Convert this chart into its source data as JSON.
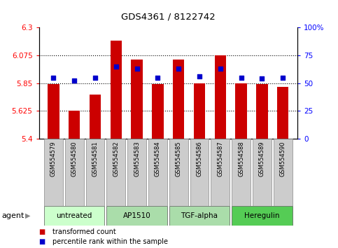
{
  "title": "GDS4361 / 8122742",
  "samples": [
    "GSM554579",
    "GSM554580",
    "GSM554581",
    "GSM554582",
    "GSM554583",
    "GSM554584",
    "GSM554585",
    "GSM554586",
    "GSM554587",
    "GSM554588",
    "GSM554589",
    "GSM554590"
  ],
  "bar_values": [
    5.84,
    5.625,
    5.76,
    6.19,
    6.04,
    5.84,
    6.04,
    5.85,
    6.075,
    5.85,
    5.84,
    5.82
  ],
  "percentile_values": [
    55,
    52,
    55,
    65,
    63,
    55,
    63,
    56,
    63,
    55,
    54,
    55
  ],
  "ylim_left": [
    5.4,
    6.3
  ],
  "ylim_right": [
    0,
    100
  ],
  "yticks_left": [
    5.4,
    5.625,
    5.85,
    6.075,
    6.3
  ],
  "ytick_labels_left": [
    "5.4",
    "5.625",
    "5.85",
    "6.075",
    "6.3"
  ],
  "yticks_right": [
    0,
    25,
    50,
    75,
    100
  ],
  "ytick_labels_right": [
    "0",
    "25",
    "50",
    "75",
    "100%"
  ],
  "hlines": [
    5.625,
    5.85,
    6.075
  ],
  "bar_color": "#cc0000",
  "dot_color": "#0000cc",
  "bar_bottom": 5.4,
  "legend_bar_label": "transformed count",
  "legend_dot_label": "percentile rank within the sample",
  "group_labels": [
    "untreated",
    "AP1510",
    "TGF-alpha",
    "Heregulin"
  ],
  "group_starts": [
    0,
    3,
    6,
    9
  ],
  "group_ends": [
    2,
    5,
    8,
    11
  ],
  "group_colors": [
    "#ccffcc",
    "#aaddaa",
    "#aaddaa",
    "#55cc55"
  ]
}
